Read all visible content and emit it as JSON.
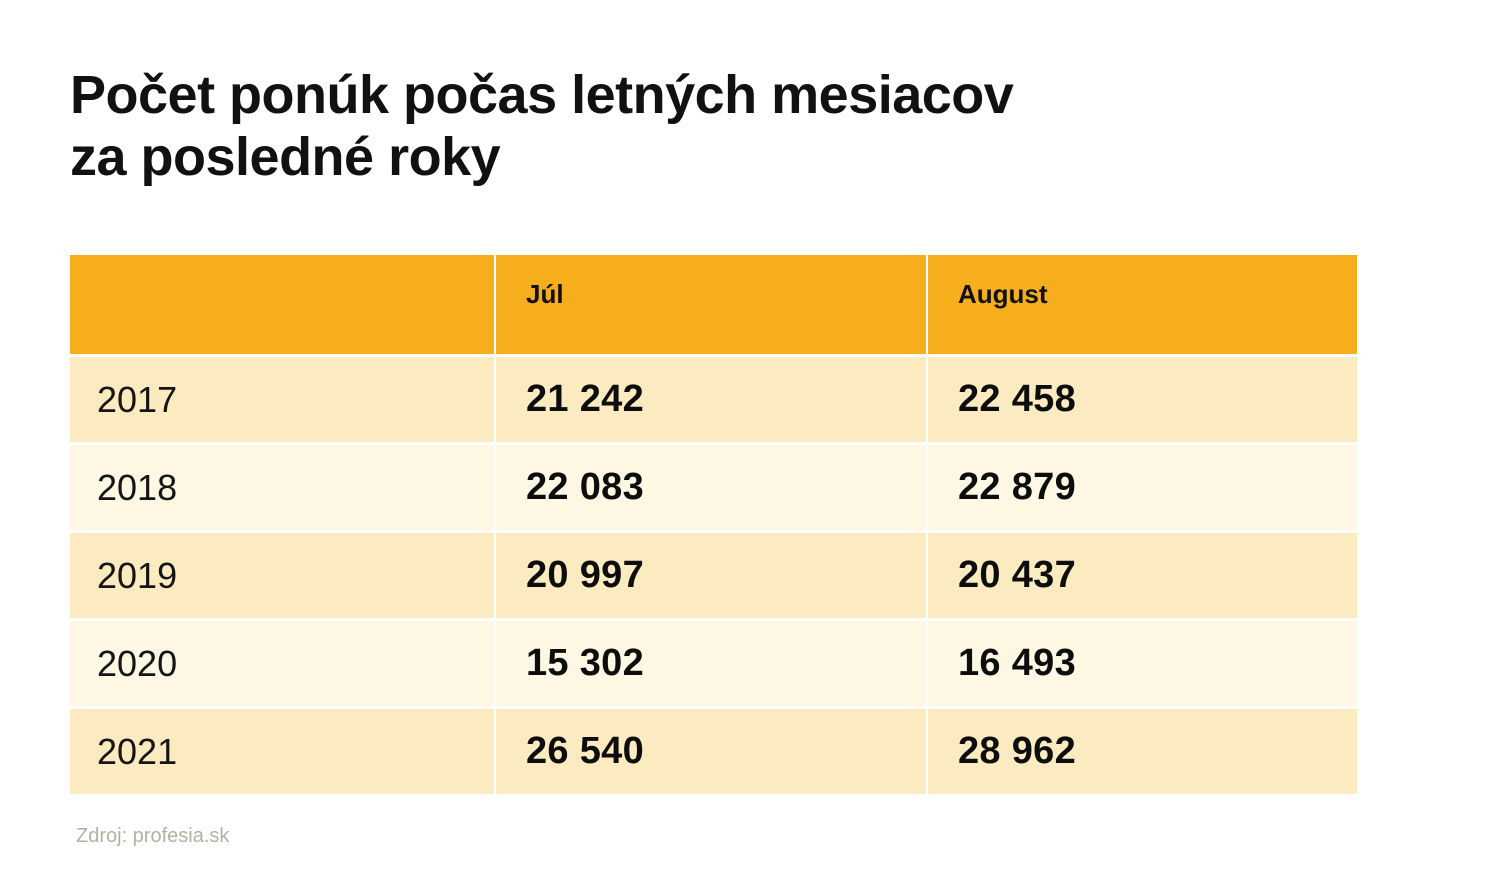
{
  "chart_data": {
    "type": "table",
    "title": "Počet ponúk počas letných mesiacov za posledné roky",
    "title_lines": [
      "Počet ponúk počas letných mesiacov",
      "za posledné roky"
    ],
    "columns": [
      "",
      "Júl",
      "August"
    ],
    "rows": [
      {
        "year": "2017",
        "jul": "21 242",
        "august": "22 458"
      },
      {
        "year": "2018",
        "jul": "22 083",
        "august": "22 879"
      },
      {
        "year": "2019",
        "jul": "20 997",
        "august": "20 437"
      },
      {
        "year": "2020",
        "jul": "15 302",
        "august": "16 493"
      },
      {
        "year": "2021",
        "jul": "26 540",
        "august": "28 962"
      }
    ],
    "values": {
      "jul": [
        21242,
        22083,
        20997,
        15302,
        26540
      ],
      "august": [
        22458,
        22879,
        20437,
        16493,
        28962
      ]
    },
    "source": "Zdroj: profesia.sk"
  },
  "colors": {
    "header": "#f6ae1d",
    "row_dark": "#fcebc1",
    "row_light": "#fef7e3",
    "source_text": "#b4b0a6"
  }
}
